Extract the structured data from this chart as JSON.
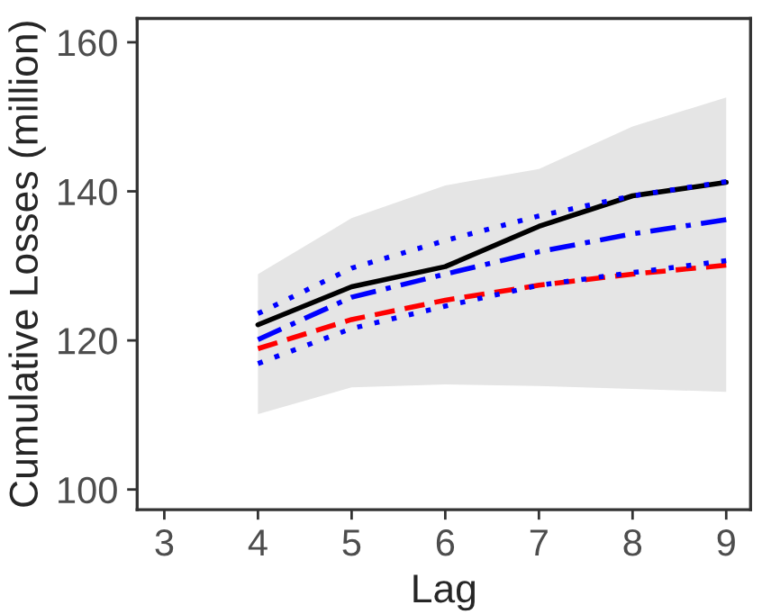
{
  "chart_data": {
    "type": "line",
    "xlabel": "Lag",
    "ylabel": "Cumulative Losses (million)",
    "x": [
      4,
      5,
      6,
      7,
      8,
      9
    ],
    "series": [
      {
        "color": "#000000",
        "line_style": "solid",
        "values": [
          122.1,
          127.2,
          129.9,
          135.3,
          139.4,
          141.2
        ],
        "lower": [
          110.1,
          113.7,
          114.1,
          113.9,
          113.5,
          113.1
        ],
        "upper": [
          128.9,
          136.4,
          140.8,
          143.0,
          148.7,
          152.6
        ]
      },
      {
        "color": "#0000ff",
        "line_style": "dotted",
        "values": [
          123.6,
          129.7,
          133.4,
          136.7,
          139.4,
          141.3
        ]
      },
      {
        "color": "#0000ff",
        "line_style": "dashdot",
        "values": [
          120.1,
          125.8,
          128.9,
          131.9,
          134.3,
          136.2
        ]
      },
      {
        "color": "#ff0000",
        "line_style": "dashed",
        "values": [
          118.9,
          122.8,
          125.4,
          127.4,
          128.9,
          130.1
        ]
      },
      {
        "color": "#0000ff",
        "line_style": "dotted",
        "values": [
          116.9,
          121.6,
          124.6,
          127.4,
          129.1,
          130.7
        ]
      }
    ],
    "xlim": [
      2.71,
      9.26
    ],
    "ylim": [
      97.3,
      163.2
    ],
    "xticks": [
      3,
      4,
      5,
      6,
      7,
      8,
      9
    ],
    "yticks": [
      100,
      120,
      140,
      160
    ],
    "grid": false,
    "legend": false,
    "marker": "none"
  }
}
